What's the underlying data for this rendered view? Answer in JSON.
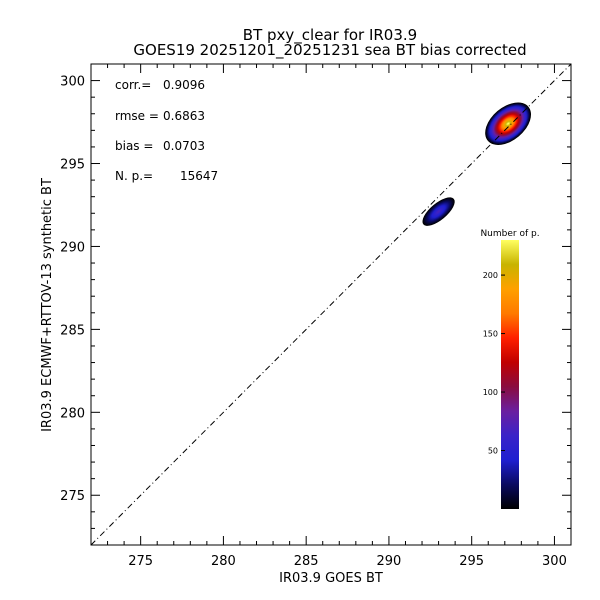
{
  "chart_data": {
    "type": "heatmap",
    "title": "BT pxy_clear for IR03.9",
    "subtitle": "GOES19 20251201_20251231 sea BT bias corrected",
    "xlabel": "IR03.9 GOES BT",
    "ylabel": "IR03.9 ECMWF+RTTOV-13 synthetic BT",
    "xlim": [
      272,
      301
    ],
    "ylim": [
      272,
      301
    ],
    "x_ticks": [
      275,
      280,
      285,
      290,
      295,
      300
    ],
    "y_ticks": [
      275,
      280,
      285,
      290,
      295,
      300
    ],
    "grid": false,
    "stats": [
      {
        "label": "corr.=",
        "value": "0.9096"
      },
      {
        "label": "rmse =",
        "value": "0.6863"
      },
      {
        "label": "bias =",
        "value": "0.0703"
      },
      {
        "label": "N. p.=",
        "value": "15647"
      }
    ],
    "reference_line": "y = x (dash-dot)",
    "density_clusters": [
      {
        "x": 297.2,
        "y": 297.4,
        "sx": 1.6,
        "sy": 1.0,
        "angle_deg": 40,
        "peak": 230
      },
      {
        "x": 293.0,
        "y": 292.1,
        "sx": 1.2,
        "sy": 0.5,
        "angle_deg": 40,
        "peak": 70
      }
    ],
    "colorbar": {
      "title": "Number of p.",
      "range": [
        0,
        230
      ],
      "ticks": [
        50,
        100,
        150,
        200
      ],
      "colormap": [
        "#000000",
        "#0a0a60",
        "#1f1fd0",
        "#3a23c8",
        "#6a1fa0",
        "#8a0c40",
        "#c00000",
        "#ff2000",
        "#ff7a00",
        "#ffa000",
        "#c8b400",
        "#ffff60"
      ]
    }
  }
}
